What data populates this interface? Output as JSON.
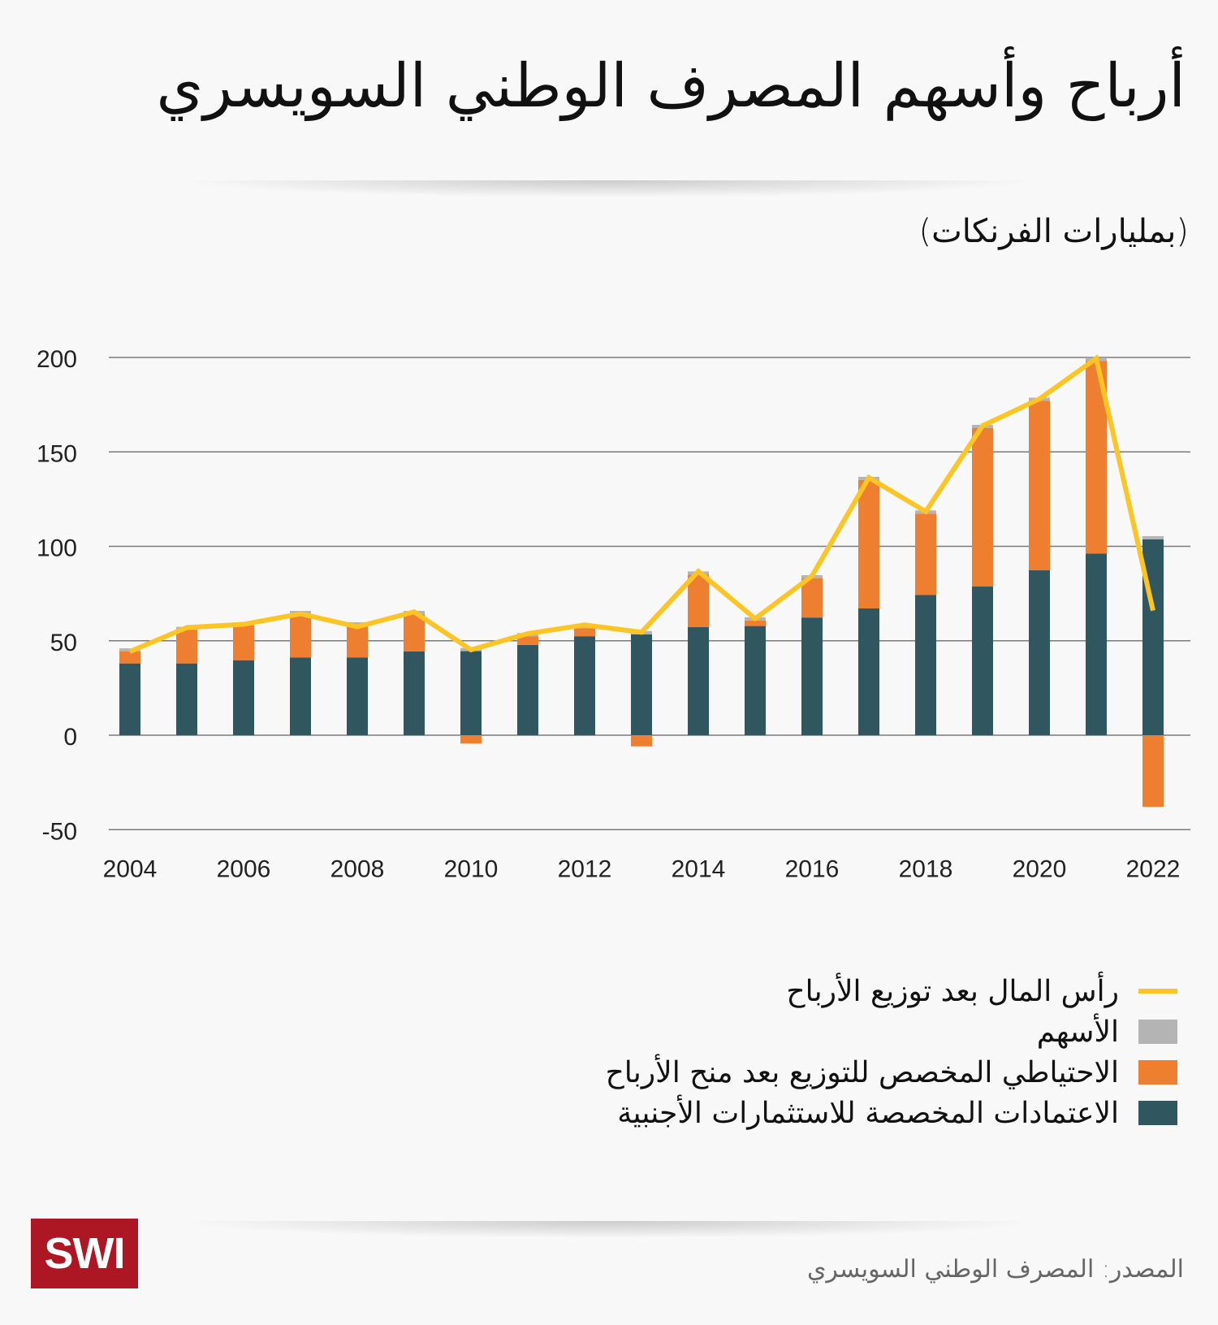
{
  "title": "أرباح وأسهم المصرف الوطني السويسري",
  "subtitle": "(بمليارات الفرنكات)",
  "source": "المصدر: المصرف الوطني السويسري",
  "logo": "SWI",
  "colors": {
    "foreign_reserves": "#30565f",
    "distribution_reserve": "#ee7e30",
    "shares": "#b4b4b4",
    "capital_line": "#fcc425",
    "grid": "#7a7a7a",
    "logo_bg": "#ad1623"
  },
  "legend": [
    {
      "label": "رأس المال بعد توزيع الأرباح",
      "key": "capital_line",
      "kind": "line"
    },
    {
      "label": "الأسهم",
      "key": "shares",
      "kind": "box"
    },
    {
      "label": "الاحتياطي المخصص للتوزيع بعد منح الأرباح",
      "key": "distribution_reserve",
      "kind": "box"
    },
    {
      "label": "الاعتمادات المخصصة للاستثمارات الأجنبية",
      "key": "foreign_reserves",
      "kind": "box"
    }
  ],
  "chart_data": {
    "type": "bar",
    "stacked": true,
    "title": "أرباح وأسهم المصرف الوطني السويسري",
    "ylabel": "(بمليارات الفرنكات)",
    "xlabel": "",
    "ylim": [
      -50,
      200
    ],
    "yticks": [
      200,
      150,
      100,
      50,
      0,
      -50
    ],
    "grid": true,
    "legend_position": "bottom-right",
    "categories": [
      2004,
      2005,
      2006,
      2007,
      2008,
      2009,
      2010,
      2011,
      2012,
      2013,
      2014,
      2015,
      2016,
      2017,
      2018,
      2019,
      2020,
      2021,
      2022
    ],
    "xtick_labels": [
      "2004",
      "2006",
      "2008",
      "2010",
      "2012",
      "2014",
      "2016",
      "2018",
      "2020",
      "2022"
    ],
    "series": [
      {
        "name": "الاعتمادات المخصصة للاستثمارات الأجنبية",
        "key": "foreign_reserves",
        "type": "bar",
        "values": [
          38,
          38,
          39.7,
          41.2,
          41.2,
          44.3,
          44.5,
          47.8,
          52.4,
          53.4,
          57.2,
          57.8,
          62.3,
          67.1,
          74.2,
          78.7,
          87.3,
          96.2,
          103.7
        ]
      },
      {
        "name": "الاحتياطي المخصص للتوزيع بعد منح الأرباح",
        "key": "distribution_reserve",
        "type": "bar",
        "values": [
          6.3,
          17.7,
          18.4,
          22.9,
          16.9,
          19.8,
          -4.4,
          4.6,
          4.3,
          -5.9,
          27.8,
          2.9,
          20.7,
          68,
          43.1,
          83.9,
          89.7,
          102,
          -37.9
        ]
      },
      {
        "name": "الأسهم",
        "key": "shares",
        "type": "bar",
        "values": [
          1.7,
          1.7,
          1.7,
          1.7,
          1.7,
          1.7,
          1.7,
          1.7,
          1.7,
          1.7,
          1.7,
          1.7,
          1.7,
          1.7,
          1.7,
          1.7,
          1.7,
          1.7,
          1.7
        ]
      },
      {
        "name": "رأس المال بعد توزيع الأرباح",
        "key": "capital_line",
        "type": "line",
        "values": [
          44.3,
          57,
          58.7,
          64.3,
          57.4,
          65.3,
          45.2,
          53.8,
          58.4,
          54.5,
          86.8,
          61.7,
          84.3,
          136.4,
          118.4,
          163.8,
          178,
          199.5,
          66
        ]
      }
    ]
  }
}
